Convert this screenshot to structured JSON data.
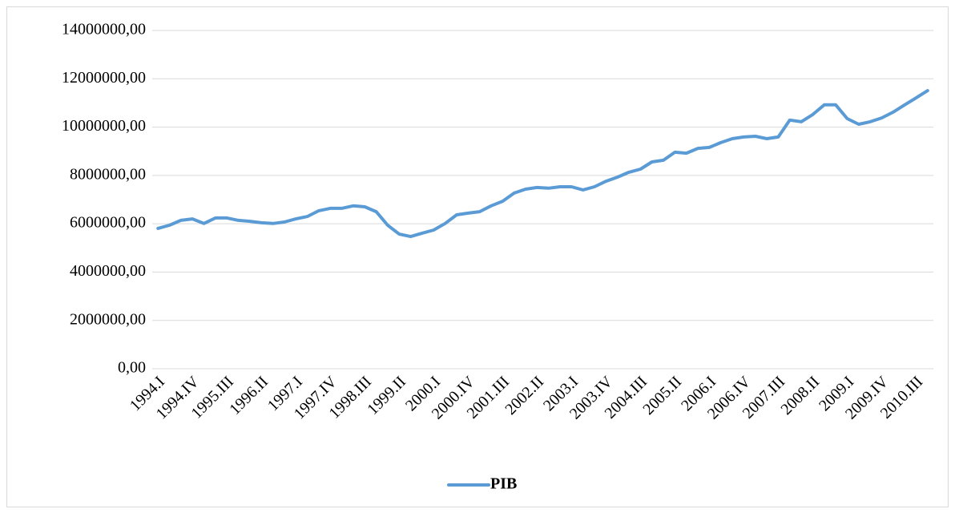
{
  "chart_data": {
    "type": "line",
    "categories": [
      "1994.I",
      null,
      null,
      "1994.IV",
      null,
      null,
      "1995.III",
      null,
      null,
      "1996.II",
      null,
      null,
      "1997.I",
      null,
      null,
      "1997.IV",
      null,
      null,
      "1998.III",
      null,
      null,
      "1999.II",
      null,
      null,
      "2000.I",
      null,
      null,
      "2000.IV",
      null,
      null,
      "2001.III",
      null,
      null,
      "2002.II",
      null,
      null,
      "2003.I",
      null,
      null,
      "2003.IV",
      null,
      null,
      "2004.III",
      null,
      null,
      "2005.II",
      null,
      null,
      "2006.I",
      null,
      null,
      "2006.IV",
      null,
      null,
      "2007.III",
      null,
      null,
      "2008.II",
      null,
      null,
      "2009.I",
      null,
      null,
      "2009.IV",
      null,
      null,
      "2010.III",
      null
    ],
    "series": [
      {
        "name": "PIB",
        "color": "#5b9bd5",
        "values": [
          5810000,
          5940000,
          6140000,
          6200000,
          6010000,
          6240000,
          6240000,
          6140000,
          6100000,
          6040000,
          6010000,
          6070000,
          6200000,
          6300000,
          6540000,
          6640000,
          6640000,
          6740000,
          6700000,
          6500000,
          5940000,
          5570000,
          5470000,
          5610000,
          5740000,
          6010000,
          6370000,
          6440000,
          6500000,
          6740000,
          6930000,
          7270000,
          7430000,
          7500000,
          7470000,
          7530000,
          7530000,
          7400000,
          7530000,
          7760000,
          7930000,
          8130000,
          8260000,
          8560000,
          8630000,
          8960000,
          8920000,
          9120000,
          9160000,
          9360000,
          9520000,
          9590000,
          9620000,
          9520000,
          9590000,
          10290000,
          10220000,
          10520000,
          10920000,
          10920000,
          10350000,
          10120000,
          10220000,
          10380000,
          10620000,
          10920000,
          11210000,
          11510000
        ]
      }
    ],
    "ylim": [
      0,
      14000000
    ],
    "yticks": [
      {
        "value": 0,
        "label": "0,00"
      },
      {
        "value": 2000000,
        "label": "2000000,00"
      },
      {
        "value": 4000000,
        "label": "4000000,00"
      },
      {
        "value": 6000000,
        "label": "6000000,00"
      },
      {
        "value": 8000000,
        "label": "8000000,00"
      },
      {
        "value": 10000000,
        "label": "10000000,00"
      },
      {
        "value": 12000000,
        "label": "12000000,00"
      },
      {
        "value": 14000000,
        "label": "14000000,00"
      }
    ],
    "grid": true,
    "legend": "bottom"
  }
}
